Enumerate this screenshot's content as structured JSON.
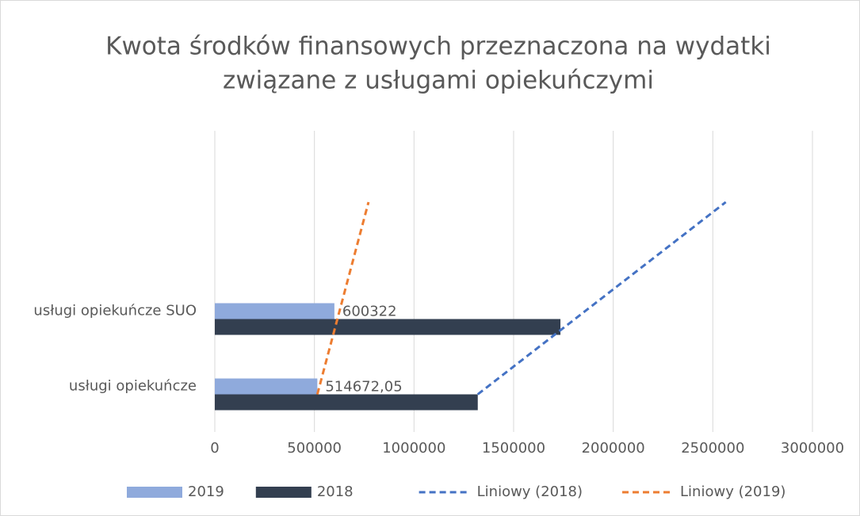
{
  "chart_data": {
    "type": "hbar",
    "title": [
      "Kwota środków finansowych przeznaczona na wydatki",
      "związane z usługami opiekuńczymi"
    ],
    "categories": [
      "usługi opiekuńcze",
      "usługi opiekuńcze SUO"
    ],
    "series": [
      {
        "name": "2019",
        "color": "#8faadc",
        "values": [
          514672.05,
          600322
        ],
        "value_labels": [
          "514672,05",
          "600322"
        ],
        "trendline": {
          "name": "Liniowy (2019)",
          "type": "linear",
          "color": "#ed7d31",
          "forward": 2
        }
      },
      {
        "name": "2018",
        "color": "#333f50",
        "values": [
          1320000,
          1735000
        ],
        "trendline": {
          "name": "Liniowy (2018)",
          "type": "linear",
          "color": "#4472c4",
          "forward": 2
        }
      }
    ],
    "xlim": [
      0,
      3000000
    ],
    "xticks": [
      0,
      500000,
      1000000,
      1500000,
      2000000,
      2500000,
      3000000
    ],
    "grid": true,
    "legend": "bottom"
  }
}
